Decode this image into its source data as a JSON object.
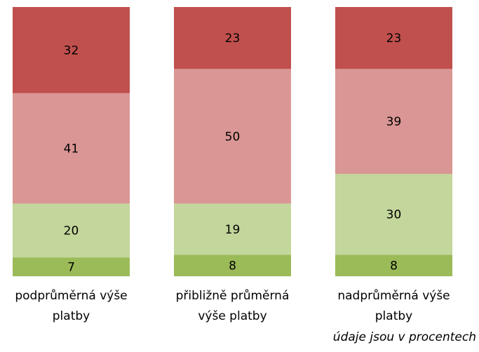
{
  "chart_data": {
    "type": "stacked_bar",
    "categories": [
      "podprůměrná výše platby",
      "přibližně průměrná výše platby",
      "nadprůměrná výše platby"
    ],
    "series": [
      {
        "color": "#9bbb59",
        "values": [
          7,
          8,
          8
        ]
      },
      {
        "color": "#c3d69b",
        "values": [
          20,
          19,
          30
        ]
      },
      {
        "color": "#d99694",
        "values": [
          41,
          50,
          39
        ]
      },
      {
        "color": "#c0504d",
        "values": [
          32,
          23,
          23
        ]
      }
    ],
    "ylim": [
      0,
      100
    ],
    "annotation": "údaje jsou v procentech"
  }
}
